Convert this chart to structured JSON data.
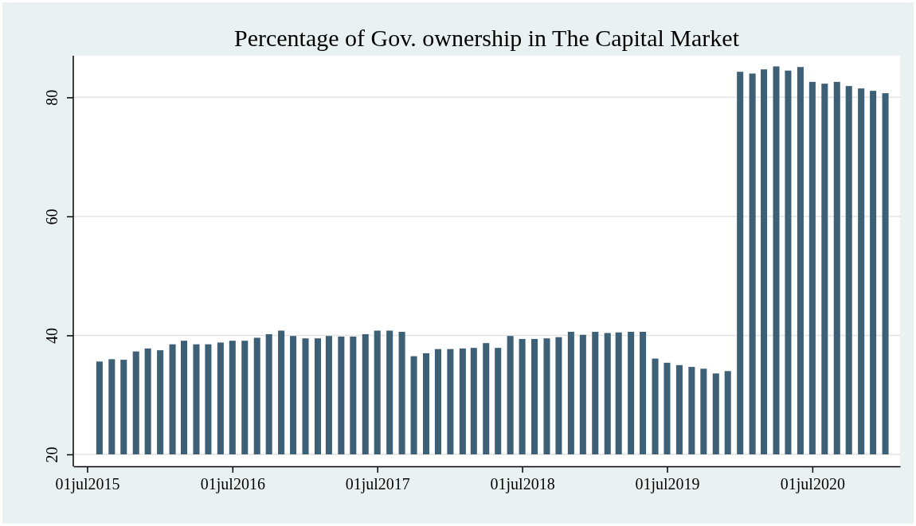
{
  "chart_data": {
    "type": "bar",
    "title": "Percentage of Gov. ownership in The Capital Market",
    "x": [
      "2015-08",
      "2015-09",
      "2015-10",
      "2015-11",
      "2015-12",
      "2016-01",
      "2016-02",
      "2016-03",
      "2016-04",
      "2016-05",
      "2016-06",
      "2016-07",
      "2016-08",
      "2016-09",
      "2016-10",
      "2016-11",
      "2016-12",
      "2017-01",
      "2017-02",
      "2017-03",
      "2017-04",
      "2017-05",
      "2017-06",
      "2017-07",
      "2017-08",
      "2017-09",
      "2017-10",
      "2017-11",
      "2017-12",
      "2018-01",
      "2018-02",
      "2018-03",
      "2018-04",
      "2018-05",
      "2018-06",
      "2018-07",
      "2018-08",
      "2018-09",
      "2018-10",
      "2018-11",
      "2018-12",
      "2019-01",
      "2019-02",
      "2019-03",
      "2019-04",
      "2019-05",
      "2019-06",
      "2019-07",
      "2019-08",
      "2019-09",
      "2019-10",
      "2019-11",
      "2019-12",
      "2020-01",
      "2020-02",
      "2020-03",
      "2020-04",
      "2020-05",
      "2020-06",
      "2020-07",
      "2020-08",
      "2020-09",
      "2020-10",
      "2020-11",
      "2020-12",
      "2021-01"
    ],
    "values": [
      35.6,
      36.0,
      35.9,
      37.3,
      37.8,
      37.5,
      38.5,
      39.1,
      38.5,
      38.5,
      38.8,
      39.1,
      39.1,
      39.6,
      40.2,
      40.8,
      39.9,
      39.5,
      39.5,
      39.9,
      39.8,
      39.8,
      40.2,
      40.8,
      40.8,
      40.6,
      36.5,
      37.0,
      37.7,
      37.7,
      37.8,
      37.9,
      38.7,
      37.9,
      39.9,
      39.4,
      39.4,
      39.5,
      39.7,
      40.6,
      40.1,
      40.6,
      40.4,
      40.5,
      40.6,
      40.6,
      36.1,
      35.4,
      35.0,
      34.7,
      34.4,
      33.6,
      34.0,
      84.3,
      84.0,
      84.7,
      85.2,
      84.5,
      85.1,
      82.6,
      82.3,
      82.6,
      81.9,
      81.5,
      81.1,
      80.7
    ],
    "color": "#3e6077",
    "xlim": [
      "2015-05-27",
      "2021-02-07"
    ],
    "xticks": [
      {
        "value": "2015-07-01",
        "label": "01jul2015"
      },
      {
        "value": "2016-07-01",
        "label": "01jul2016"
      },
      {
        "value": "2017-07-01",
        "label": "01jul2017"
      },
      {
        "value": "2018-07-01",
        "label": "01jul2018"
      },
      {
        "value": "2019-07-01",
        "label": "01jul2019"
      },
      {
        "value": "2020-07-01",
        "label": "01jul2020"
      }
    ],
    "ylim": [
      20,
      87
    ],
    "yticks": [
      20,
      40,
      60,
      80
    ],
    "grid": "y"
  }
}
